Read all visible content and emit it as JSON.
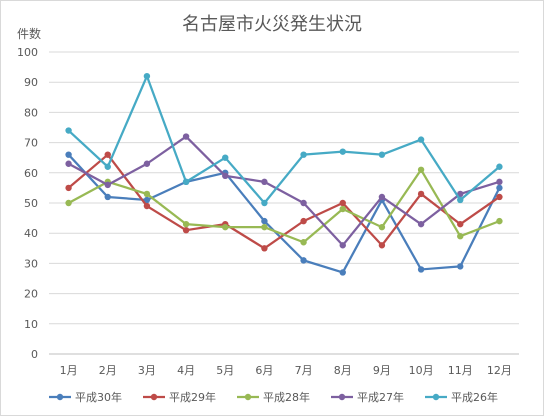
{
  "chart_data": {
    "type": "line",
    "title": "名古屋市火災発生状況",
    "ylabel": "件数",
    "xlabel": "",
    "categories": [
      "1月",
      "2月",
      "3月",
      "4月",
      "5月",
      "6月",
      "7月",
      "8月",
      "9月",
      "10月",
      "11月",
      "12月"
    ],
    "ylim": [
      0,
      100
    ],
    "yticks": [
      "0",
      "10",
      "20",
      "30",
      "40",
      "50",
      "60",
      "70",
      "80",
      "90",
      "100"
    ],
    "grid": true,
    "legend_position": "bottom",
    "series": [
      {
        "name": "平成30年",
        "color": "#4a7ebb",
        "values": [
          66,
          52,
          51,
          57,
          60,
          44,
          31,
          27,
          51,
          28,
          29,
          55
        ]
      },
      {
        "name": "平成29年",
        "color": "#be4b48",
        "values": [
          55,
          66,
          49,
          41,
          43,
          35,
          44,
          50,
          36,
          53,
          43,
          52
        ]
      },
      {
        "name": "平成28年",
        "color": "#98b954",
        "values": [
          50,
          57,
          53,
          43,
          42,
          42,
          37,
          48,
          42,
          61,
          39,
          44
        ]
      },
      {
        "name": "平成27年",
        "color": "#7d60a0",
        "values": [
          63,
          56,
          63,
          72,
          59,
          57,
          50,
          36,
          52,
          43,
          53,
          57
        ]
      },
      {
        "name": "平成26年",
        "color": "#46aac5",
        "values": [
          74,
          62,
          92,
          57,
          65,
          50,
          66,
          67,
          66,
          71,
          51,
          62
        ]
      }
    ]
  }
}
